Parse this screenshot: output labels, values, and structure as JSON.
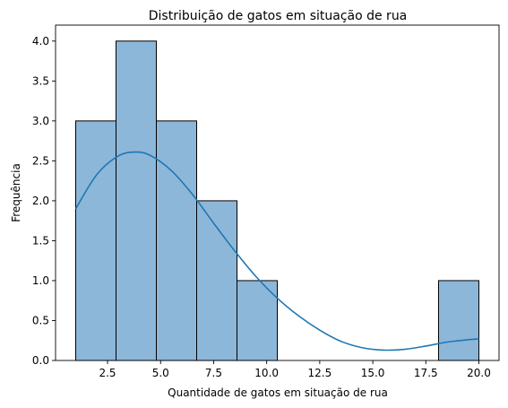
{
  "chart_data": {
    "type": "bar",
    "subtype": "histogram-with-kde",
    "title": "Distribuição de gatos em situação de rua",
    "xlabel": "Quantidade de gatos em situação de rua",
    "ylabel": "Frequência",
    "xlim": [
      0.05,
      20.95
    ],
    "ylim": [
      0,
      4.2
    ],
    "x_ticks": [
      2.5,
      5.0,
      7.5,
      10.0,
      12.5,
      15.0,
      17.5,
      20.0
    ],
    "x_tick_labels": [
      "2.5",
      "5.0",
      "7.5",
      "10.0",
      "12.5",
      "15.0",
      "17.5",
      "20.0"
    ],
    "y_ticks": [
      0.0,
      0.5,
      1.0,
      1.5,
      2.0,
      2.5,
      3.0,
      3.5,
      4.0
    ],
    "y_tick_labels": [
      "0.0",
      "0.5",
      "1.0",
      "1.5",
      "2.0",
      "2.5",
      "3.0",
      "3.5",
      "4.0"
    ],
    "bins": [
      {
        "x0": 1.0,
        "x1": 2.9,
        "count": 3
      },
      {
        "x0": 2.9,
        "x1": 4.8,
        "count": 4
      },
      {
        "x0": 4.8,
        "x1": 6.7,
        "count": 3
      },
      {
        "x0": 6.7,
        "x1": 8.6,
        "count": 2
      },
      {
        "x0": 8.6,
        "x1": 10.5,
        "count": 1
      },
      {
        "x0": 10.5,
        "x1": 12.4,
        "count": 0
      },
      {
        "x0": 12.4,
        "x1": 14.3,
        "count": 0
      },
      {
        "x0": 14.3,
        "x1": 16.2,
        "count": 0
      },
      {
        "x0": 16.2,
        "x1": 18.1,
        "count": 0
      },
      {
        "x0": 18.1,
        "x1": 20.0,
        "count": 1
      }
    ],
    "kde": {
      "x": [
        1.0,
        2.0,
        3.0,
        3.8,
        4.5,
        5.5,
        6.5,
        7.5,
        8.5,
        9.5,
        10.5,
        11.5,
        12.5,
        13.5,
        14.5,
        15.5,
        16.5,
        17.5,
        18.5,
        19.5,
        20.0
      ],
      "y": [
        1.9,
        2.33,
        2.56,
        2.61,
        2.57,
        2.38,
        2.08,
        1.72,
        1.37,
        1.05,
        0.78,
        0.56,
        0.38,
        0.24,
        0.16,
        0.13,
        0.14,
        0.18,
        0.23,
        0.26,
        0.27
      ]
    },
    "colors": {
      "bar_fill": "#8db7d9",
      "bar_edge": "#000000",
      "kde_line": "#1f77b4"
    },
    "grid": false,
    "legend": "none"
  }
}
